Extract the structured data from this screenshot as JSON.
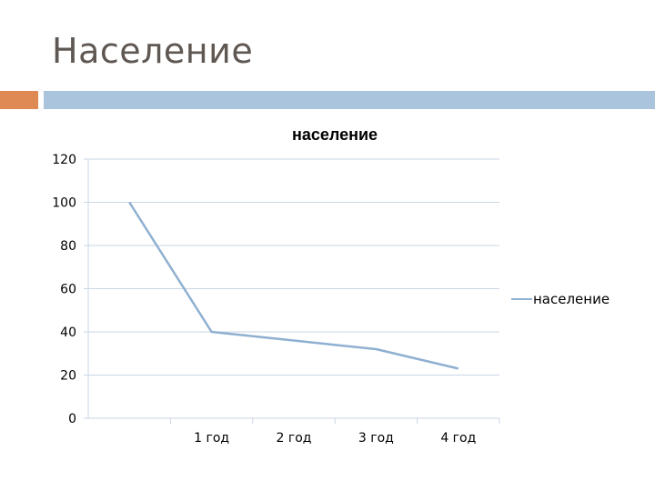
{
  "slide": {
    "title": "Население",
    "accent_color": "#df8a55",
    "bar_color": "#a9c4dc"
  },
  "chart_data": {
    "type": "line",
    "title": "население",
    "categories": [
      "",
      "1 год",
      "2 год",
      "3 год",
      "4 год"
    ],
    "series": [
      {
        "name": "население",
        "values": [
          100,
          40,
          36,
          32,
          23
        ],
        "color": "#8fb0d1"
      }
    ],
    "ylim": [
      0,
      120
    ],
    "yticks": [
      0,
      20,
      40,
      60,
      80,
      100,
      120
    ],
    "grid": true,
    "legend": "right",
    "xlabel": "",
    "ylabel": ""
  }
}
